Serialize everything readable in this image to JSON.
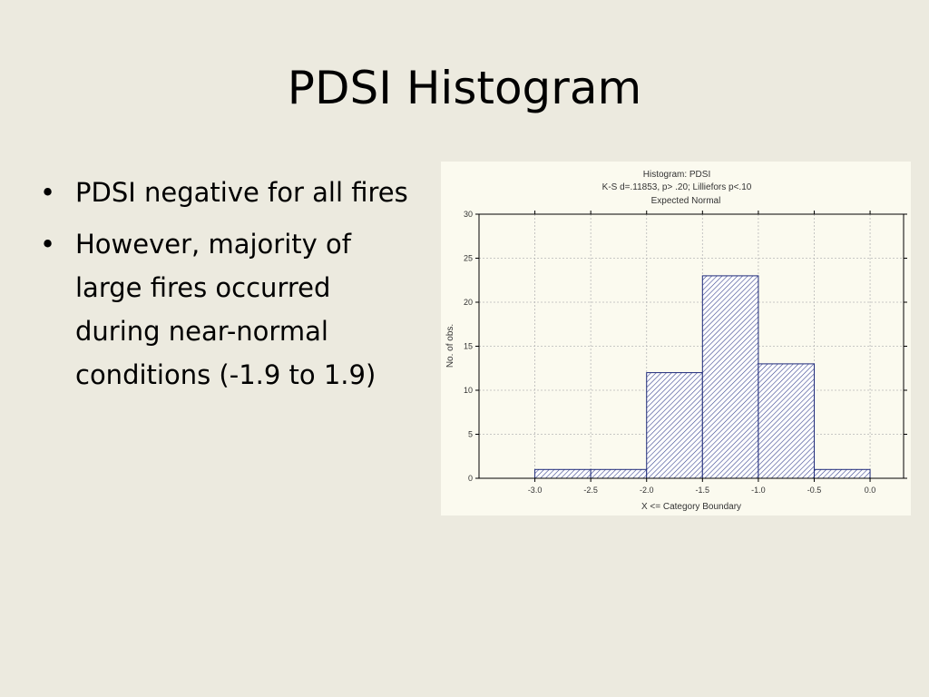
{
  "slide": {
    "title": "PDSI Histogram",
    "bullets": [
      "PDSI negative for all fires",
      "However, majority of large fires occurred during near-normal conditions (-1.9 to 1.9)"
    ]
  },
  "chart_data": {
    "type": "bar",
    "title": "Histogram: PDSI",
    "subtitle": "K-S d=.11853, p> .20; Lilliefors p<.10",
    "legend": "Expected Normal",
    "xlabel": "X <= Category Boundary",
    "ylabel": "No. of obs.",
    "bins": [
      {
        "from": -3.0,
        "to": -2.5,
        "value": 1
      },
      {
        "from": -2.5,
        "to": -2.0,
        "value": 1
      },
      {
        "from": -2.0,
        "to": -1.5,
        "value": 12
      },
      {
        "from": -1.5,
        "to": -1.0,
        "value": 23
      },
      {
        "from": -1.0,
        "to": -0.5,
        "value": 13
      },
      {
        "from": -0.5,
        "to": 0.0,
        "value": 1
      }
    ],
    "xticks": [
      "-3.0",
      "-2.5",
      "-2.0",
      "-1.5",
      "-1.0",
      "-0.5",
      "0.0"
    ],
    "xtick_values": [
      -3.0,
      -2.5,
      -2.0,
      -1.5,
      -1.0,
      -0.5,
      0.0
    ],
    "yticks": [
      "0",
      "5",
      "10",
      "15",
      "20",
      "25",
      "30"
    ],
    "ytick_values": [
      0,
      5,
      10,
      15,
      20,
      25,
      30
    ],
    "xlim": [
      -3.5,
      0.3
    ],
    "ylim": [
      0,
      30
    ],
    "grid": true,
    "colors": {
      "bar_stroke": "#1e2a7a",
      "bar_fill": "#ffffff",
      "hatch": "#3a4590",
      "grid": "#b8b8b8",
      "axis": "#000000"
    }
  }
}
